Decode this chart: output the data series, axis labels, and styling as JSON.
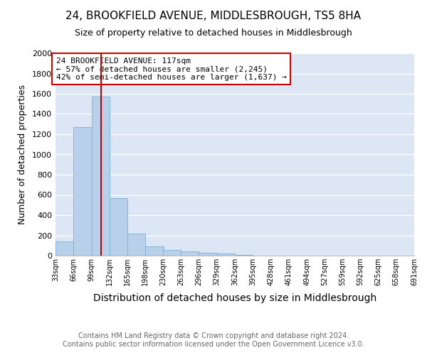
{
  "title1": "24, BROOKFIELD AVENUE, MIDDLESBROUGH, TS5 8HA",
  "title2": "Size of property relative to detached houses in Middlesbrough",
  "xlabel": "Distribution of detached houses by size in Middlesbrough",
  "ylabel": "Number of detached properties",
  "bin_edges": [
    33,
    66,
    99,
    132,
    165,
    198,
    230,
    263,
    296,
    329,
    362,
    395,
    428,
    461,
    494,
    527,
    559,
    592,
    625,
    658,
    691
  ],
  "bar_heights": [
    140,
    1270,
    1570,
    570,
    215,
    90,
    55,
    45,
    30,
    20,
    10,
    0,
    0,
    0,
    0,
    0,
    0,
    0,
    0,
    0
  ],
  "bar_color": "#b8d0ea",
  "bar_edge_color": "#7aafd4",
  "bg_color": "#dce6f5",
  "grid_color": "#ffffff",
  "vline_x": 117,
  "vline_color": "#cc0000",
  "annotation_line1": "24 BROOKFIELD AVENUE: 117sqm",
  "annotation_line2": "← 57% of detached houses are smaller (2,245)",
  "annotation_line3": "42% of semi-detached houses are larger (1,637) →",
  "annotation_box_color": "#ffffff",
  "annotation_box_edge": "#cc0000",
  "ylim": [
    0,
    2000
  ],
  "yticks": [
    0,
    200,
    400,
    600,
    800,
    1000,
    1200,
    1400,
    1600,
    1800,
    2000
  ],
  "footer_text": "Contains HM Land Registry data © Crown copyright and database right 2024.\nContains public sector information licensed under the Open Government Licence v3.0.",
  "title1_fontsize": 11,
  "title2_fontsize": 9,
  "xlabel_fontsize": 10,
  "ylabel_fontsize": 9,
  "tick_fontsize": 8,
  "xtick_fontsize": 7,
  "footer_fontsize": 7,
  "annotation_fontsize": 8
}
